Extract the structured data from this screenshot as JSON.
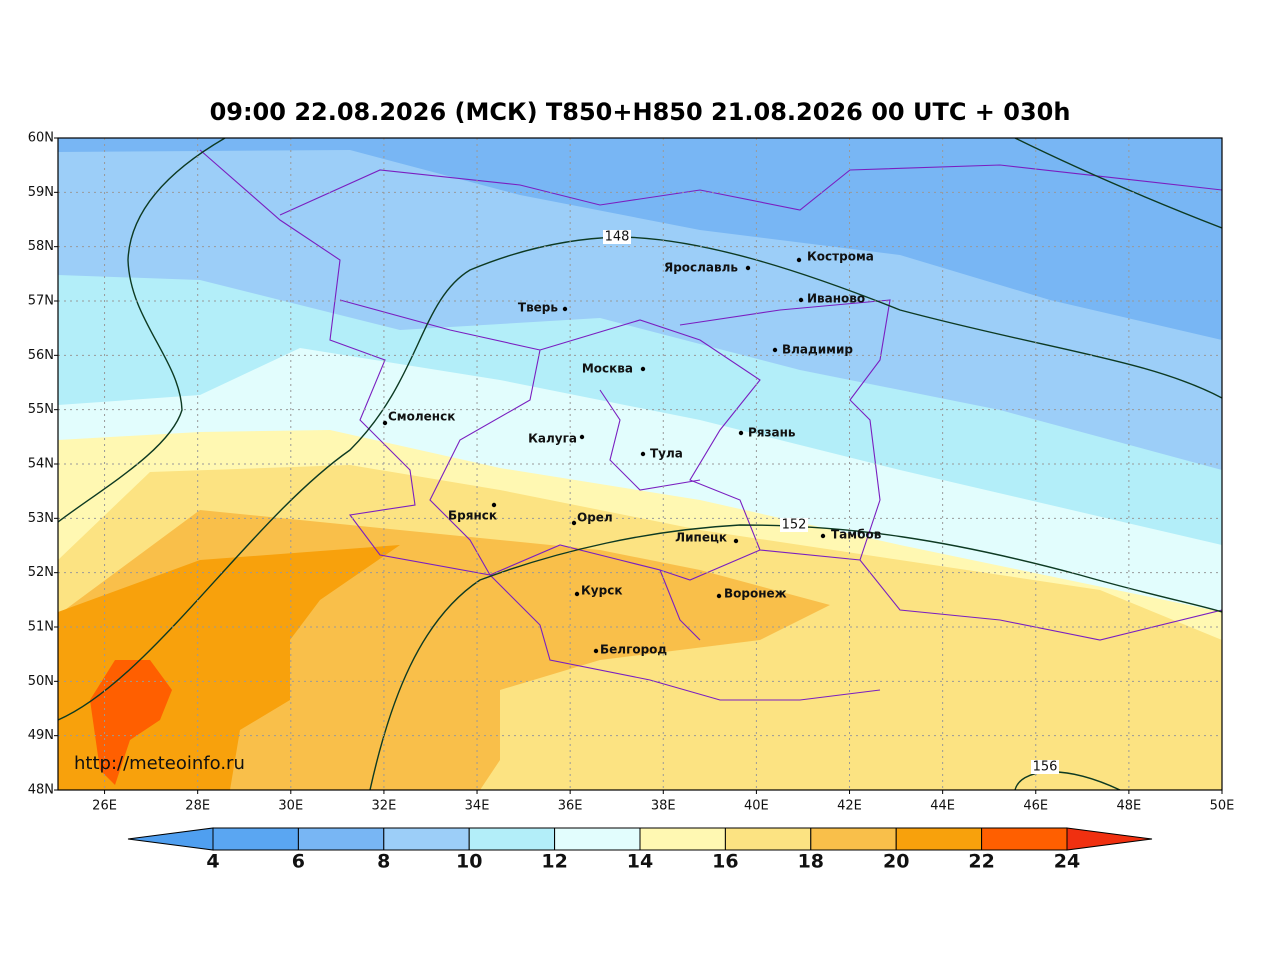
{
  "header": {
    "title": "09:00 22.08.2026 (МСК) T850+H850 21.08.2026 00 UTC + 030h"
  },
  "map": {
    "lat_ticks": [
      "60N",
      "59N",
      "58N",
      "57N",
      "56N",
      "55N",
      "54N",
      "53N",
      "52N",
      "51N",
      "50N",
      "49N",
      "48N"
    ],
    "lon_ticks": [
      "26E",
      "28E",
      "30E",
      "32E",
      "34E",
      "36E",
      "38E",
      "40E",
      "42E",
      "44E",
      "46E",
      "48E",
      "50E"
    ],
    "cities": [
      "Кострома",
      "Ярославль",
      "Иваново",
      "Тверь",
      "Владимир",
      "Москва",
      "Смоленск",
      "Калуга",
      "Рязань",
      "Тула",
      "Брянск",
      "Орел",
      "Липецк",
      "Тамбов",
      "Курск",
      "Воронеж",
      "Белгород"
    ],
    "contour_labels": [
      "148",
      "152",
      "156"
    ],
    "watermark": "http://meteoinfo.ru"
  },
  "colorbar": {
    "ticks": [
      4,
      6,
      8,
      10,
      12,
      14,
      16,
      18,
      20,
      22,
      24
    ],
    "colors": [
      "#4f9ff0",
      "#5aa6f2",
      "#78b6f4",
      "#9ccef8",
      "#b3eef9",
      "#e2fdfd",
      "#fff8b2",
      "#fce382",
      "#f9bf4a",
      "#f8a10c",
      "#ff5f00",
      "#f03010"
    ]
  }
}
